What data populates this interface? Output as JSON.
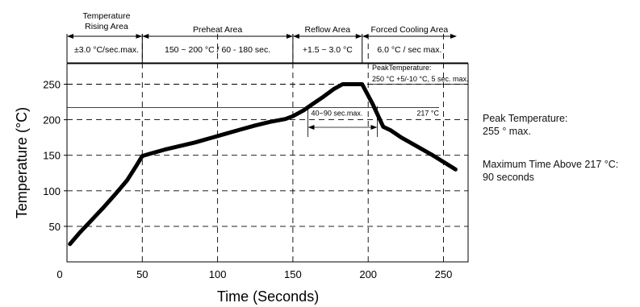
{
  "chart_data": {
    "type": "line",
    "xlabel": "Time (Seconds)",
    "ylabel": "Temperature (°C)",
    "xlim": [
      0,
      270
    ],
    "ylim": [
      0,
      290
    ],
    "x_ticks": [
      0,
      50,
      100,
      150,
      200,
      250
    ],
    "y_ticks": [
      50,
      100,
      150,
      200,
      250
    ],
    "grid": "dashed",
    "series": [
      {
        "x": [
          2,
          8,
          16,
          24,
          32,
          40,
          46,
          50,
          55,
          65,
          75,
          85,
          95,
          105,
          115,
          125,
          135,
          145,
          150,
          157,
          163,
          170,
          177,
          183,
          190,
          196,
          203,
          210,
          215,
          222,
          232,
          242,
          252,
          258
        ],
        "y": [
          25,
          40,
          58,
          76,
          95,
          115,
          135,
          149,
          152,
          158,
          163,
          168,
          174,
          180,
          186,
          192,
          197,
          201,
          205,
          213,
          222,
          232,
          243,
          250,
          250,
          250,
          222,
          190,
          185,
          175,
          163,
          151,
          138,
          130
        ]
      }
    ],
    "areas": [
      {
        "name": "Temperature\nRising Area",
        "x_range": [
          0,
          50
        ],
        "spec": "±3.0 °C/sec. max."
      },
      {
        "name": "Preheat Area",
        "x_range": [
          50,
          150
        ],
        "spec": "150 ~ 200 °C / 60 - 180 sec."
      },
      {
        "name": "Reflow Area",
        "x_range": [
          150,
          196
        ],
        "spec": "+1.5 ~ 3.0 °C"
      },
      {
        "name": "Forced Cooling Area",
        "x_range": [
          196,
          258
        ],
        "spec": "6.0 °C / sec max."
      }
    ],
    "annotations": {
      "peak_label": [
        "PeakTemperature:",
        "250 °C +5/-10 °C, 5 sec. max."
      ],
      "peak_line_y": 250,
      "line_217_label": "217 °C",
      "line_217_y": 217,
      "time_above_label": "40~90 sec.max.",
      "time_above_range": [
        160,
        206
      ]
    }
  },
  "side_notes": {
    "note1": [
      "Peak Temperature:",
      "255 ° max."
    ],
    "note2": [
      "Maximum Time Above 217 °C:",
      "90 seconds"
    ]
  }
}
